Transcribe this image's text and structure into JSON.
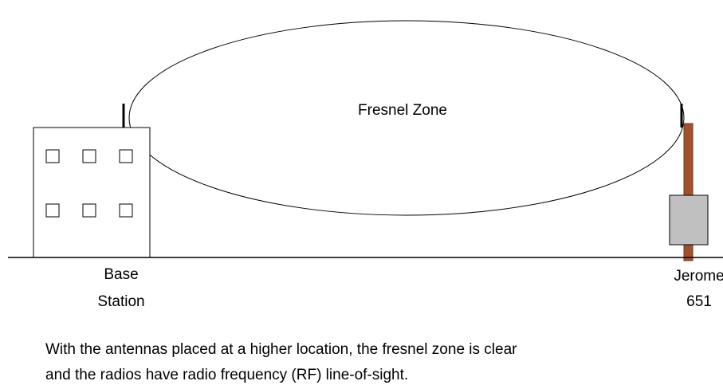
{
  "diagram": {
    "zone_label": "Fresnel Zone",
    "base_label": [
      "Base",
      "Station"
    ],
    "device_label": [
      "Jerome",
      "651"
    ],
    "caption": [
      "With the antennas placed at a higher location, the fresnel zone is clear",
      "and the radios have radio frequency (RF) line-of-sight."
    ]
  }
}
